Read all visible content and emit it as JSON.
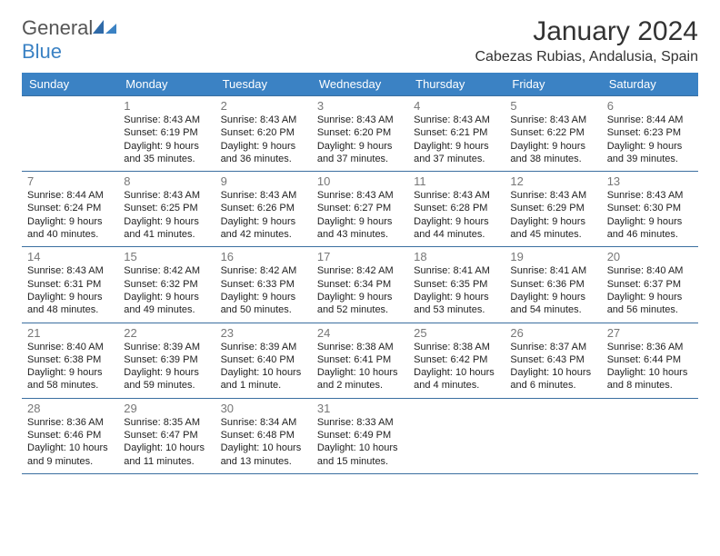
{
  "brand": {
    "name1": "General",
    "name2": "Blue"
  },
  "title": "January 2024",
  "location": "Cabezas Rubias, Andalusia, Spain",
  "colors": {
    "header_bg": "#3b82c4",
    "header_fg": "#ffffff",
    "rule": "#3b6fa0",
    "daynum": "#777777",
    "text": "#222222"
  },
  "dayHeaders": [
    "Sunday",
    "Monday",
    "Tuesday",
    "Wednesday",
    "Thursday",
    "Friday",
    "Saturday"
  ],
  "weeks": [
    [
      null,
      {
        "n": "1",
        "sr": "Sunrise: 8:43 AM",
        "ss": "Sunset: 6:19 PM",
        "dl": "Daylight: 9 hours and 35 minutes."
      },
      {
        "n": "2",
        "sr": "Sunrise: 8:43 AM",
        "ss": "Sunset: 6:20 PM",
        "dl": "Daylight: 9 hours and 36 minutes."
      },
      {
        "n": "3",
        "sr": "Sunrise: 8:43 AM",
        "ss": "Sunset: 6:20 PM",
        "dl": "Daylight: 9 hours and 37 minutes."
      },
      {
        "n": "4",
        "sr": "Sunrise: 8:43 AM",
        "ss": "Sunset: 6:21 PM",
        "dl": "Daylight: 9 hours and 37 minutes."
      },
      {
        "n": "5",
        "sr": "Sunrise: 8:43 AM",
        "ss": "Sunset: 6:22 PM",
        "dl": "Daylight: 9 hours and 38 minutes."
      },
      {
        "n": "6",
        "sr": "Sunrise: 8:44 AM",
        "ss": "Sunset: 6:23 PM",
        "dl": "Daylight: 9 hours and 39 minutes."
      }
    ],
    [
      {
        "n": "7",
        "sr": "Sunrise: 8:44 AM",
        "ss": "Sunset: 6:24 PM",
        "dl": "Daylight: 9 hours and 40 minutes."
      },
      {
        "n": "8",
        "sr": "Sunrise: 8:43 AM",
        "ss": "Sunset: 6:25 PM",
        "dl": "Daylight: 9 hours and 41 minutes."
      },
      {
        "n": "9",
        "sr": "Sunrise: 8:43 AM",
        "ss": "Sunset: 6:26 PM",
        "dl": "Daylight: 9 hours and 42 minutes."
      },
      {
        "n": "10",
        "sr": "Sunrise: 8:43 AM",
        "ss": "Sunset: 6:27 PM",
        "dl": "Daylight: 9 hours and 43 minutes."
      },
      {
        "n": "11",
        "sr": "Sunrise: 8:43 AM",
        "ss": "Sunset: 6:28 PM",
        "dl": "Daylight: 9 hours and 44 minutes."
      },
      {
        "n": "12",
        "sr": "Sunrise: 8:43 AM",
        "ss": "Sunset: 6:29 PM",
        "dl": "Daylight: 9 hours and 45 minutes."
      },
      {
        "n": "13",
        "sr": "Sunrise: 8:43 AM",
        "ss": "Sunset: 6:30 PM",
        "dl": "Daylight: 9 hours and 46 minutes."
      }
    ],
    [
      {
        "n": "14",
        "sr": "Sunrise: 8:43 AM",
        "ss": "Sunset: 6:31 PM",
        "dl": "Daylight: 9 hours and 48 minutes."
      },
      {
        "n": "15",
        "sr": "Sunrise: 8:42 AM",
        "ss": "Sunset: 6:32 PM",
        "dl": "Daylight: 9 hours and 49 minutes."
      },
      {
        "n": "16",
        "sr": "Sunrise: 8:42 AM",
        "ss": "Sunset: 6:33 PM",
        "dl": "Daylight: 9 hours and 50 minutes."
      },
      {
        "n": "17",
        "sr": "Sunrise: 8:42 AM",
        "ss": "Sunset: 6:34 PM",
        "dl": "Daylight: 9 hours and 52 minutes."
      },
      {
        "n": "18",
        "sr": "Sunrise: 8:41 AM",
        "ss": "Sunset: 6:35 PM",
        "dl": "Daylight: 9 hours and 53 minutes."
      },
      {
        "n": "19",
        "sr": "Sunrise: 8:41 AM",
        "ss": "Sunset: 6:36 PM",
        "dl": "Daylight: 9 hours and 54 minutes."
      },
      {
        "n": "20",
        "sr": "Sunrise: 8:40 AM",
        "ss": "Sunset: 6:37 PM",
        "dl": "Daylight: 9 hours and 56 minutes."
      }
    ],
    [
      {
        "n": "21",
        "sr": "Sunrise: 8:40 AM",
        "ss": "Sunset: 6:38 PM",
        "dl": "Daylight: 9 hours and 58 minutes."
      },
      {
        "n": "22",
        "sr": "Sunrise: 8:39 AM",
        "ss": "Sunset: 6:39 PM",
        "dl": "Daylight: 9 hours and 59 minutes."
      },
      {
        "n": "23",
        "sr": "Sunrise: 8:39 AM",
        "ss": "Sunset: 6:40 PM",
        "dl": "Daylight: 10 hours and 1 minute."
      },
      {
        "n": "24",
        "sr": "Sunrise: 8:38 AM",
        "ss": "Sunset: 6:41 PM",
        "dl": "Daylight: 10 hours and 2 minutes."
      },
      {
        "n": "25",
        "sr": "Sunrise: 8:38 AM",
        "ss": "Sunset: 6:42 PM",
        "dl": "Daylight: 10 hours and 4 minutes."
      },
      {
        "n": "26",
        "sr": "Sunrise: 8:37 AM",
        "ss": "Sunset: 6:43 PM",
        "dl": "Daylight: 10 hours and 6 minutes."
      },
      {
        "n": "27",
        "sr": "Sunrise: 8:36 AM",
        "ss": "Sunset: 6:44 PM",
        "dl": "Daylight: 10 hours and 8 minutes."
      }
    ],
    [
      {
        "n": "28",
        "sr": "Sunrise: 8:36 AM",
        "ss": "Sunset: 6:46 PM",
        "dl": "Daylight: 10 hours and 9 minutes."
      },
      {
        "n": "29",
        "sr": "Sunrise: 8:35 AM",
        "ss": "Sunset: 6:47 PM",
        "dl": "Daylight: 10 hours and 11 minutes."
      },
      {
        "n": "30",
        "sr": "Sunrise: 8:34 AM",
        "ss": "Sunset: 6:48 PM",
        "dl": "Daylight: 10 hours and 13 minutes."
      },
      {
        "n": "31",
        "sr": "Sunrise: 8:33 AM",
        "ss": "Sunset: 6:49 PM",
        "dl": "Daylight: 10 hours and 15 minutes."
      },
      null,
      null,
      null
    ]
  ]
}
